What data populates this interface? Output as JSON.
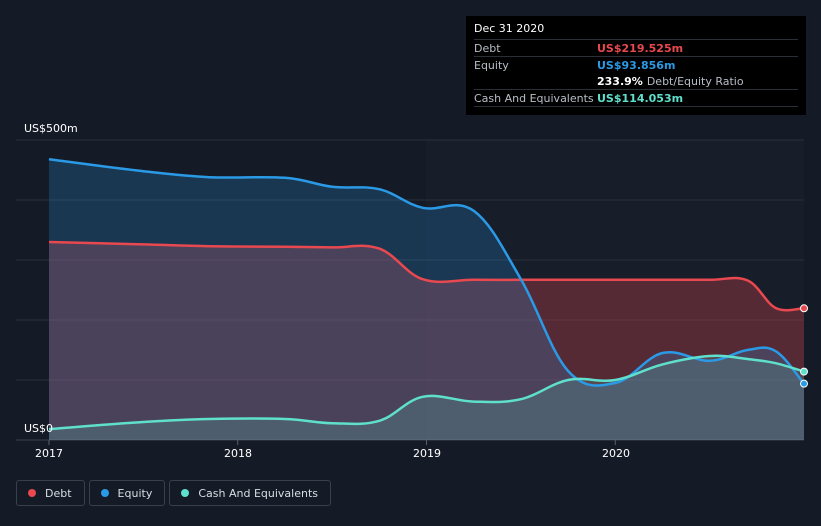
{
  "tooltip": {
    "date": "Dec 31 2020",
    "rows": [
      {
        "label": "Debt",
        "value": "US$219.525m",
        "color": "#e8484f"
      },
      {
        "label": "Equity",
        "value": "US$93.856m",
        "color": "#2b9ae6"
      }
    ],
    "ratio_value": "233.9%",
    "ratio_label": "Debt/Equity Ratio",
    "cash_label": "Cash And Equivalents",
    "cash_value": "US$114.053m",
    "cash_color": "#5fe0cc"
  },
  "axis": {
    "y_top_label": "US$500m",
    "y_bottom_label": "US$0",
    "x_labels": [
      "2017",
      "2018",
      "2019",
      "2020"
    ]
  },
  "legend": [
    {
      "label": "Debt",
      "color": "#e8484f"
    },
    {
      "label": "Equity",
      "color": "#2b9ae6"
    },
    {
      "label": "Cash And Equivalents",
      "color": "#5fe0cc"
    }
  ],
  "chart_data": {
    "type": "area",
    "x_unit": "year",
    "ylim": [
      0,
      500
    ],
    "y_unit": "US$m",
    "series": [
      {
        "name": "Debt",
        "color": "#e8484f",
        "x": [
          2017.0,
          2017.5,
          2017.85,
          2018.25,
          2018.5,
          2018.75,
          2018.98,
          2019.25,
          2019.5,
          2019.75,
          2020.0,
          2020.25,
          2020.5,
          2020.7,
          2020.85,
          2021.0
        ],
        "y": [
          330,
          326,
          323,
          322,
          321,
          319,
          268,
          267,
          267,
          267,
          267,
          267,
          267,
          266,
          220,
          219.525
        ]
      },
      {
        "name": "Equity",
        "color": "#2b9ae6",
        "x": [
          2017.0,
          2017.5,
          2017.85,
          2018.25,
          2018.5,
          2018.75,
          2018.98,
          2019.25,
          2019.5,
          2019.75,
          2020.0,
          2020.25,
          2020.5,
          2020.7,
          2020.85,
          2021.0
        ],
        "y": [
          468,
          448,
          438,
          437,
          422,
          418,
          387,
          382,
          268,
          115,
          95,
          145,
          132,
          150,
          148,
          93.856
        ]
      },
      {
        "name": "Cash And Equivalents",
        "color": "#5fe0cc",
        "x": [
          2017.0,
          2017.5,
          2017.85,
          2018.25,
          2018.5,
          2018.75,
          2018.98,
          2019.25,
          2019.5,
          2019.75,
          2020.0,
          2020.25,
          2020.5,
          2020.7,
          2020.85,
          2021.0
        ],
        "y": [
          18,
          30,
          35,
          35,
          28,
          32,
          72,
          64,
          68,
          100,
          100,
          126,
          140,
          135,
          128,
          114.053
        ]
      }
    ]
  }
}
